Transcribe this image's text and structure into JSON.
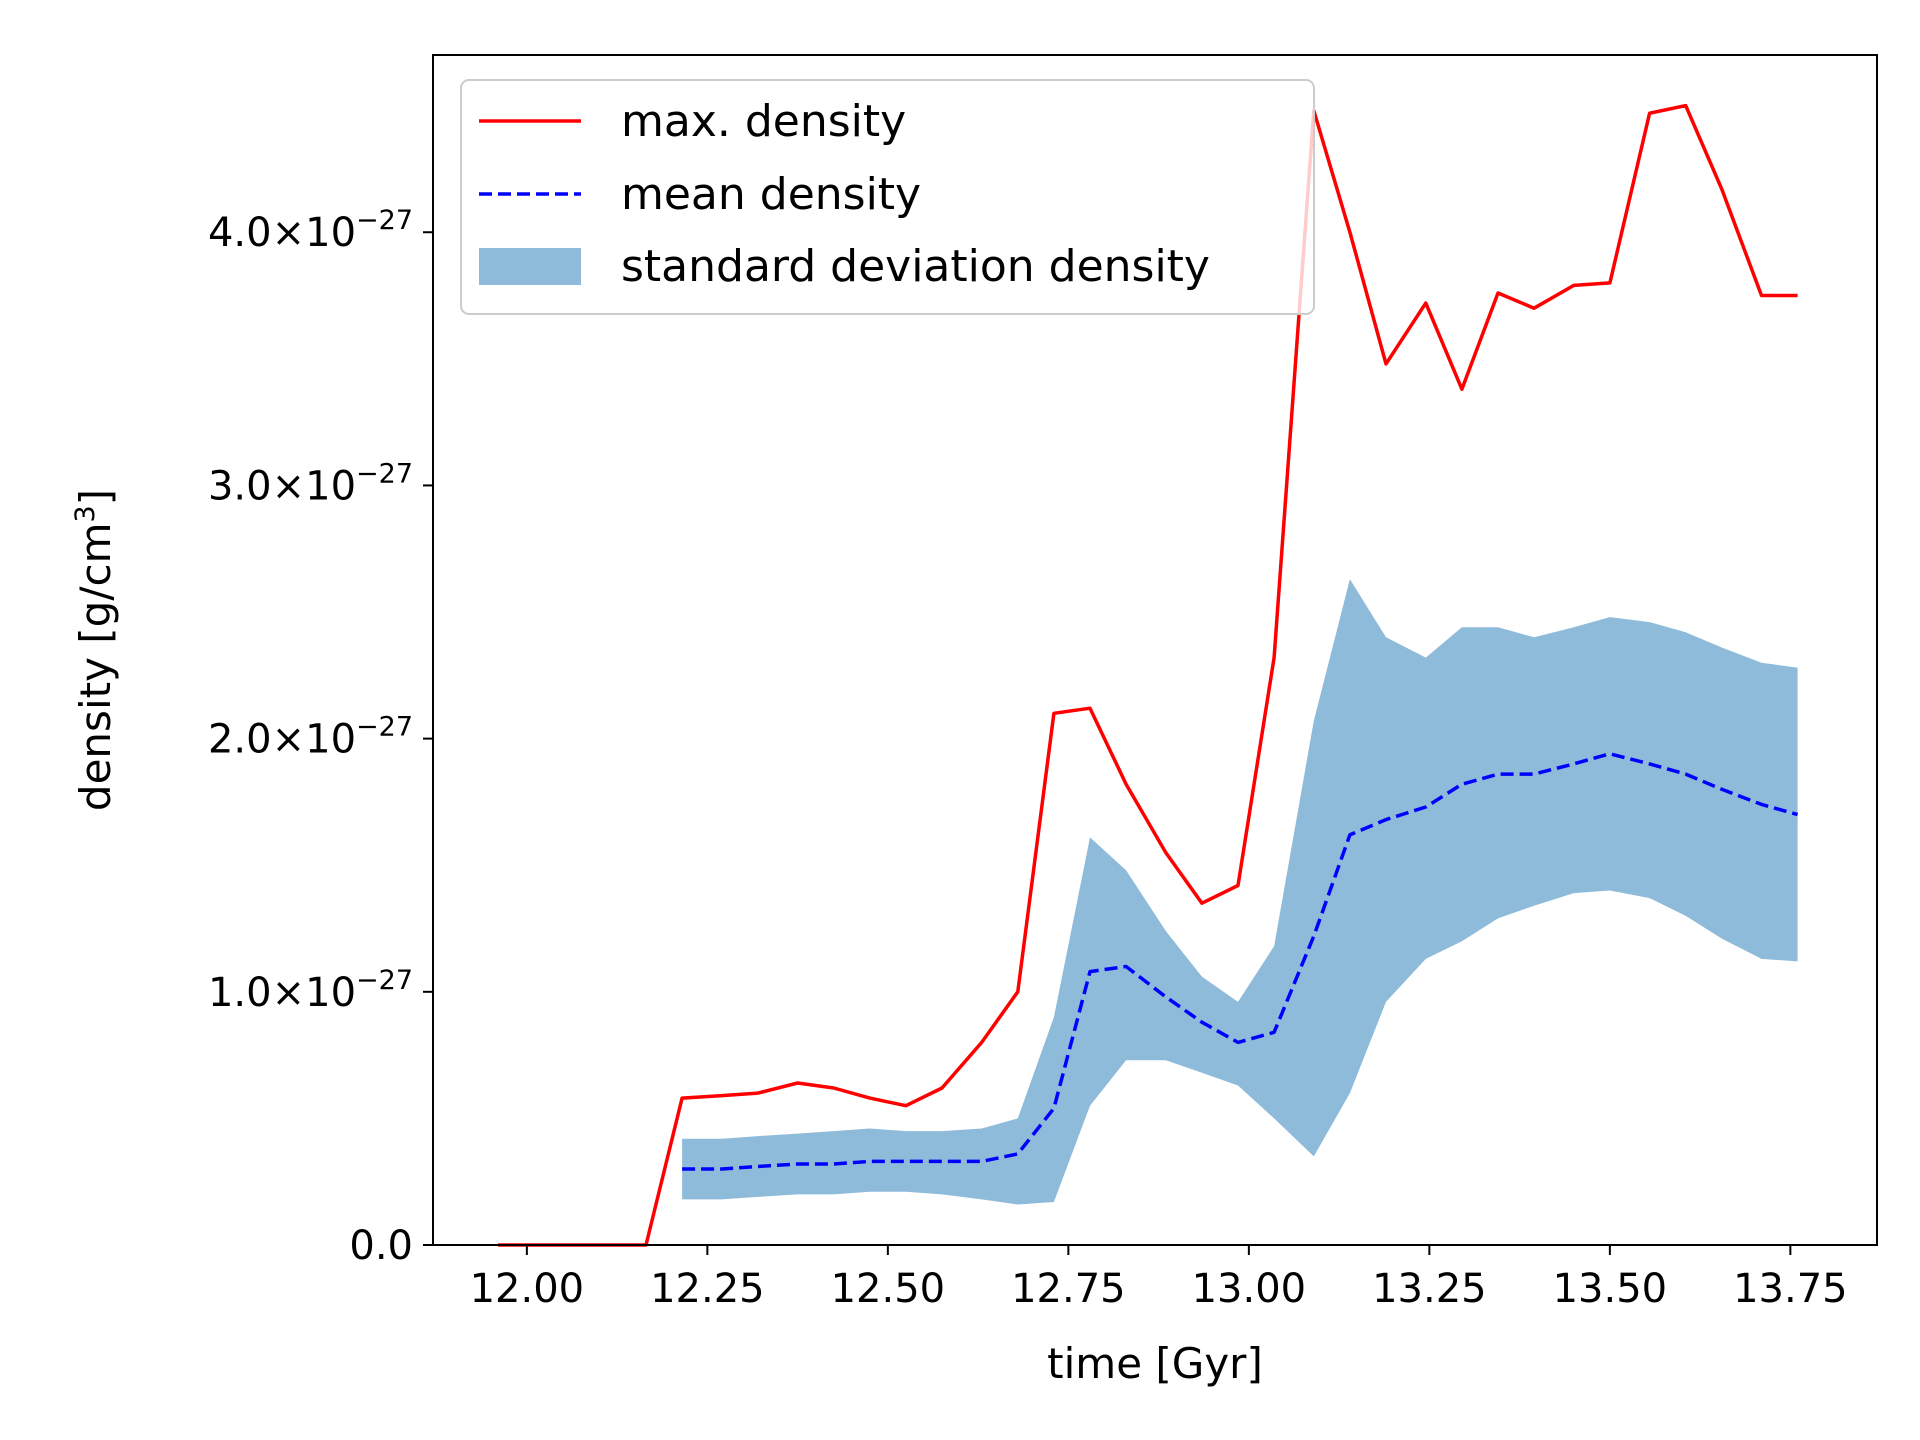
{
  "chart_data": {
    "type": "line",
    "title": "",
    "xlabel": "time [Gyr]",
    "ylabel": {
      "text": "density [g/cm",
      "superscript": "3",
      "suffix": "]"
    },
    "xlim": [
      11.87,
      13.87
    ],
    "ylim": [
      0,
      4.7e-27
    ],
    "grid": false,
    "legend_position": "top-left",
    "xticks": [
      {
        "value": 12.0,
        "label": "12.00"
      },
      {
        "value": 12.25,
        "label": "12.25"
      },
      {
        "value": 12.5,
        "label": "12.50"
      },
      {
        "value": 12.75,
        "label": "12.75"
      },
      {
        "value": 13.0,
        "label": "13.00"
      },
      {
        "value": 13.25,
        "label": "13.25"
      },
      {
        "value": 13.5,
        "label": "13.50"
      },
      {
        "value": 13.75,
        "label": "13.75"
      }
    ],
    "yticks": [
      {
        "value": 0,
        "mantissa": "0.0",
        "exponent": ""
      },
      {
        "value": 1e-27,
        "mantissa": "1.0×10",
        "exponent": "−27"
      },
      {
        "value": 2e-27,
        "mantissa": "2.0×10",
        "exponent": "−27"
      },
      {
        "value": 3e-27,
        "mantissa": "3.0×10",
        "exponent": "−27"
      },
      {
        "value": 4e-27,
        "mantissa": "4.0×10",
        "exponent": "−27"
      }
    ],
    "series": [
      {
        "name": "max. density",
        "style": "solid",
        "color": "#ff0000",
        "x": [
          11.96,
          12.01,
          12.06,
          12.11,
          12.165,
          12.215,
          12.27,
          12.32,
          12.375,
          12.425,
          12.475,
          12.525,
          12.575,
          12.63,
          12.68,
          12.73,
          12.78,
          12.83,
          12.885,
          12.935,
          12.985,
          13.035,
          13.09,
          13.14,
          13.19,
          13.245,
          13.295,
          13.345,
          13.395,
          13.45,
          13.5,
          13.555,
          13.605,
          13.655,
          13.71,
          13.76
        ],
        "y": [
          0,
          0,
          0,
          0,
          0,
          5.8e-28,
          5.9e-28,
          6e-28,
          6.4e-28,
          6.2e-28,
          5.8e-28,
          5.5e-28,
          6.2e-28,
          8e-28,
          1e-27,
          2.1e-27,
          2.12e-27,
          1.82e-27,
          1.55e-27,
          1.35e-27,
          1.42e-27,
          2.32e-27,
          4.48e-27,
          4e-27,
          3.48e-27,
          3.72e-27,
          3.38e-27,
          3.76e-27,
          3.7e-27,
          3.79e-27,
          3.8e-27,
          4.47e-27,
          4.5e-27,
          4.17e-27,
          3.75e-27,
          3.75e-27
        ]
      },
      {
        "name": "mean density",
        "style": "dashed",
        "color": "#0000ff",
        "x": [
          12.215,
          12.27,
          12.32,
          12.375,
          12.425,
          12.475,
          12.525,
          12.575,
          12.63,
          12.68,
          12.73,
          12.78,
          12.83,
          12.885,
          12.935,
          12.985,
          13.035,
          13.09,
          13.14,
          13.19,
          13.245,
          13.295,
          13.345,
          13.395,
          13.45,
          13.5,
          13.555,
          13.605,
          13.655,
          13.71,
          13.76
        ],
        "y": [
          3e-28,
          3e-28,
          3.1e-28,
          3.2e-28,
          3.2e-28,
          3.3e-28,
          3.3e-28,
          3.3e-28,
          3.3e-28,
          3.6e-28,
          5.4e-28,
          1.08e-27,
          1.1e-27,
          9.8e-28,
          8.8e-28,
          8e-28,
          8.4e-28,
          1.22e-27,
          1.62e-27,
          1.68e-27,
          1.73e-27,
          1.82e-27,
          1.86e-27,
          1.86e-27,
          1.9e-27,
          1.94e-27,
          1.9e-27,
          1.86e-27,
          1.8e-27,
          1.74e-27,
          1.7e-27
        ]
      }
    ],
    "band": {
      "name": "standard deviation density",
      "color": "#8fbbdb",
      "x": [
        12.215,
        12.27,
        12.32,
        12.375,
        12.425,
        12.475,
        12.525,
        12.575,
        12.63,
        12.68,
        12.73,
        12.78,
        12.83,
        12.885,
        12.935,
        12.985,
        13.035,
        13.09,
        13.14,
        13.19,
        13.245,
        13.295,
        13.345,
        13.395,
        13.45,
        13.5,
        13.555,
        13.605,
        13.655,
        13.71,
        13.76
      ],
      "upper": [
        4.2e-28,
        4.2e-28,
        4.3e-28,
        4.4e-28,
        4.5e-28,
        4.6e-28,
        4.5e-28,
        4.5e-28,
        4.6e-28,
        5e-28,
        9e-28,
        1.61e-27,
        1.48e-27,
        1.24e-27,
        1.06e-27,
        9.6e-28,
        1.18e-27,
        2.07e-27,
        2.63e-27,
        2.4e-27,
        2.32e-27,
        2.44e-27,
        2.44e-27,
        2.4e-27,
        2.44e-27,
        2.48e-27,
        2.46e-27,
        2.42e-27,
        2.36e-27,
        2.3e-27,
        2.28e-27
      ],
      "lower": [
        1.8e-28,
        1.8e-28,
        1.9e-28,
        2e-28,
        2e-28,
        2.1e-28,
        2.1e-28,
        2e-28,
        1.8e-28,
        1.6e-28,
        1.7e-28,
        5.5e-28,
        7.3e-28,
        7.3e-28,
        6.8e-28,
        6.3e-28,
        5e-28,
        3.5e-28,
        6e-28,
        9.6e-28,
        1.13e-27,
        1.2e-27,
        1.29e-27,
        1.34e-27,
        1.39e-27,
        1.4e-27,
        1.37e-27,
        1.3e-27,
        1.21e-27,
        1.13e-27,
        1.12e-27
      ]
    },
    "legend": [
      {
        "label": "max. density",
        "kind": "solid-line",
        "color": "#ff0000"
      },
      {
        "label": "mean density",
        "kind": "dashed-line",
        "color": "#0000ff"
      },
      {
        "label": "standard deviation density",
        "kind": "patch",
        "color": "#8fbbdb"
      }
    ]
  }
}
